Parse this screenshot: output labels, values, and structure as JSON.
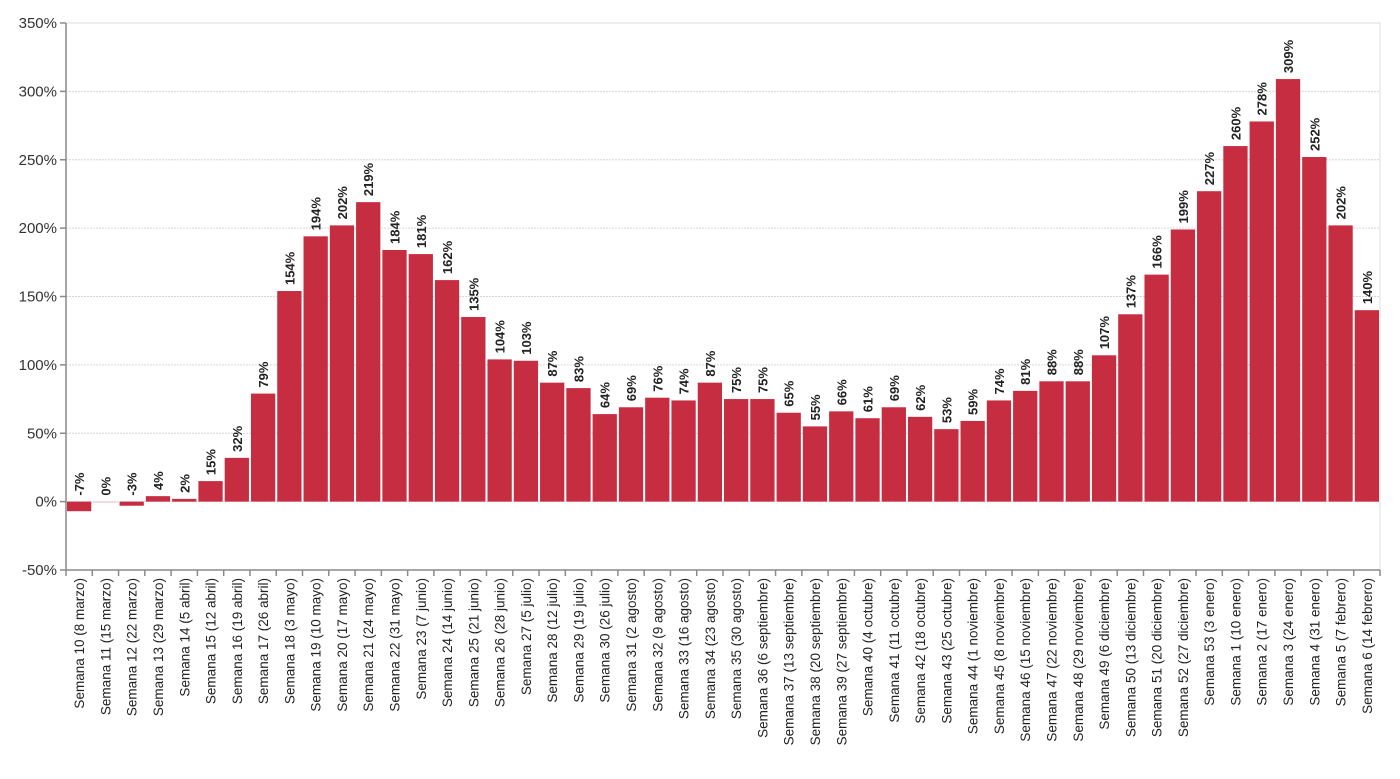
{
  "chart_data": {
    "type": "bar",
    "title": "",
    "xlabel": "",
    "ylabel": "",
    "ylim": [
      -50,
      350
    ],
    "yticks": [
      -50,
      0,
      50,
      100,
      150,
      200,
      250,
      300,
      350
    ],
    "ytick_labels": [
      "-50%",
      "0%",
      "50%",
      "100%",
      "150%",
      "200%",
      "250%",
      "300%",
      "350%"
    ],
    "grid": true,
    "legend": null,
    "bar_color": "#c72d40",
    "categories": [
      "Semana 10 (8 marzo)",
      "Semana 11 (15 marzo)",
      "Semana 12 (22 marzo)",
      "Semana 13 (29 marzo)",
      "Semana 14 (5 abril)",
      "Semana 15 (12 abril)",
      "Semana 16 (19 abril)",
      "Semana 17 (26 abril)",
      "Semana 18 (3 mayo)",
      "Semana 19 (10 mayo)",
      "Semana 20 (17 mayo)",
      "Semana 21 (24 mayo)",
      "Semana 22 (31 mayo)",
      "Semana 23 (7 junio)",
      "Semana 24 (14 junio)",
      "Semana 25 (21 junio)",
      "Semana 26 (28 junio)",
      "Semana 27 (5 julio)",
      "Semana 28 (12 julio)",
      "Semana 29 (19 julio)",
      "Semana 30 (26 julio)",
      "Semana 31 (2 agosto)",
      "Semana 32 (9 agosto)",
      "Semana 33 (16 agosto)",
      "Semana 34 (23 agosto)",
      "Semana 35 (30 agosto)",
      "Semana 36 (6 septiembre)",
      "Semana 37 (13 septiembre)",
      "Semana 38 (20 septiembre)",
      "Semana 39 (27 septiembre)",
      "Semana 40 (4 octubre)",
      "Semana 41 (11 octubre)",
      "Semana 42 (18 octubre)",
      "Semana 43 (25 octubre)",
      "Semana 44 (1 noviembre)",
      "Semana 45 (8 noviembre)",
      "Semana 46 (15 noviembre)",
      "Semana 47 (22 noviembre)",
      "Semana 48 (29 noviembre)",
      "Semana 49 (6 diciembre)",
      "Semana 50 (13 diciembre)",
      "Semana 51 (20 diciembre)",
      "Semana 52 (27 diciembre)",
      "Semana 53 (3 enero)",
      "Semana 1 (10 enero)",
      "Semana 2 (17 enero)",
      "Semana 3 (24 enero)",
      "Semana 4 (31 enero)",
      "Semana 5 (7 febrero)",
      "Semana 6 (14 febrero)"
    ],
    "values": [
      -7,
      0,
      -3,
      4,
      2,
      15,
      32,
      79,
      154,
      194,
      202,
      219,
      184,
      181,
      162,
      135,
      104,
      103,
      87,
      83,
      64,
      69,
      76,
      74,
      87,
      75,
      75,
      65,
      55,
      66,
      61,
      69,
      62,
      53,
      59,
      74,
      81,
      88,
      88,
      107,
      137,
      166,
      199,
      227,
      260,
      278,
      309,
      252,
      202,
      140
    ],
    "value_labels": [
      "-7%",
      "0%",
      "-3%",
      "4%",
      "2%",
      "15%",
      "32%",
      "79%",
      "154%",
      "194%",
      "202%",
      "219%",
      "184%",
      "181%",
      "162%",
      "135%",
      "104%",
      "103%",
      "87%",
      "83%",
      "64%",
      "69%",
      "76%",
      "74%",
      "87%",
      "75%",
      "75%",
      "65%",
      "55%",
      "66%",
      "61%",
      "69%",
      "62%",
      "53%",
      "59%",
      "74%",
      "81%",
      "88%",
      "88%",
      "107%",
      "137%",
      "166%",
      "199%",
      "227%",
      "260%",
      "278%",
      "309%",
      "252%",
      "202%",
      "140%"
    ]
  }
}
